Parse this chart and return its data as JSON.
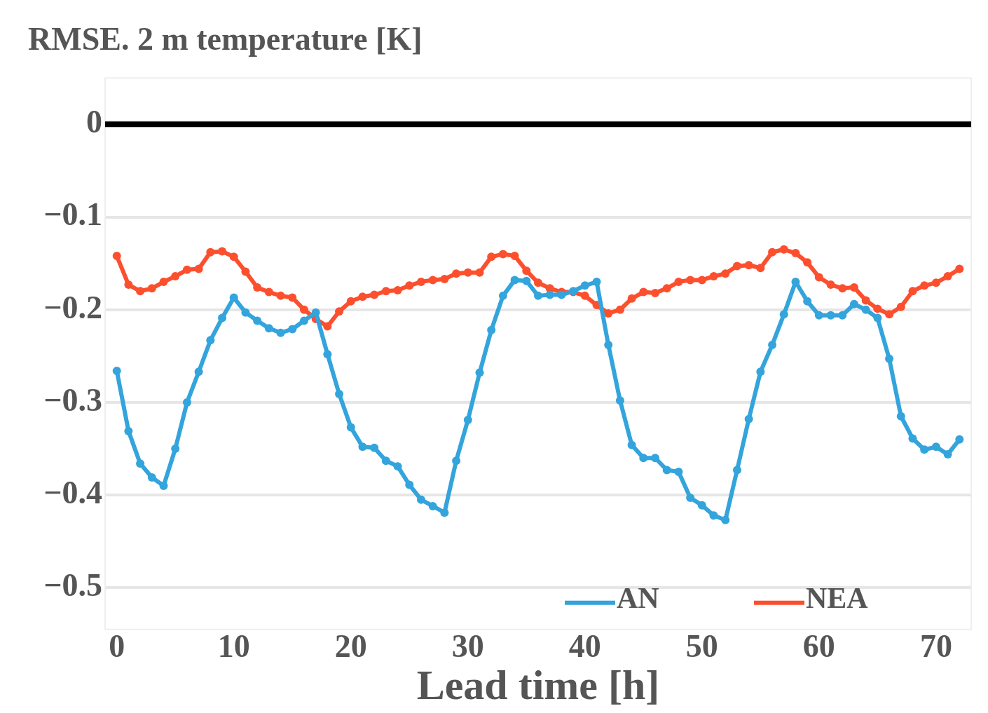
{
  "chart_data": {
    "type": "line",
    "title": "RMSE. 2 m temperature [K]",
    "xlabel": "Lead time [h]",
    "x": [
      0,
      1,
      2,
      3,
      4,
      5,
      6,
      7,
      8,
      9,
      10,
      11,
      12,
      13,
      14,
      15,
      16,
      17,
      18,
      19,
      20,
      21,
      22,
      23,
      24,
      25,
      26,
      27,
      28,
      29,
      30,
      31,
      32,
      33,
      34,
      35,
      36,
      37,
      38,
      39,
      40,
      41,
      42,
      43,
      44,
      45,
      46,
      47,
      48,
      49,
      50,
      51,
      52,
      53,
      54,
      55,
      56,
      57,
      58,
      59,
      60,
      61,
      62,
      63,
      64,
      65,
      66,
      67,
      68,
      69,
      70,
      71,
      72
    ],
    "series": [
      {
        "name": "AN",
        "color": "#33a4dc",
        "values": [
          -0.266,
          -0.331,
          -0.366,
          -0.381,
          -0.39,
          -0.35,
          -0.3,
          -0.267,
          -0.233,
          -0.209,
          -0.187,
          -0.203,
          -0.212,
          -0.22,
          -0.225,
          -0.221,
          -0.212,
          -0.203,
          -0.248,
          -0.291,
          -0.327,
          -0.348,
          -0.349,
          -0.363,
          -0.369,
          -0.389,
          -0.405,
          -0.412,
          -0.419,
          -0.363,
          -0.319,
          -0.268,
          -0.222,
          -0.185,
          -0.168,
          -0.169,
          -0.185,
          -0.184,
          -0.184,
          -0.18,
          -0.174,
          -0.17,
          -0.238,
          -0.298,
          -0.346,
          -0.36,
          -0.36,
          -0.373,
          -0.375,
          -0.403,
          -0.411,
          -0.422,
          -0.427,
          -0.373,
          -0.318,
          -0.267,
          -0.238,
          -0.205,
          -0.17,
          -0.191,
          -0.206,
          -0.206,
          -0.206,
          -0.194,
          -0.2,
          -0.209,
          -0.253,
          -0.315,
          -0.339,
          -0.351,
          -0.348,
          -0.356,
          -0.34
        ]
      },
      {
        "name": "NEA",
        "color": "#fc4f2e",
        "values": [
          -0.142,
          -0.173,
          -0.18,
          -0.177,
          -0.17,
          -0.164,
          -0.157,
          -0.156,
          -0.138,
          -0.137,
          -0.143,
          -0.159,
          -0.176,
          -0.181,
          -0.185,
          -0.187,
          -0.2,
          -0.21,
          -0.218,
          -0.202,
          -0.191,
          -0.186,
          -0.184,
          -0.18,
          -0.179,
          -0.174,
          -0.17,
          -0.168,
          -0.167,
          -0.161,
          -0.16,
          -0.16,
          -0.143,
          -0.14,
          -0.142,
          -0.158,
          -0.171,
          -0.177,
          -0.181,
          -0.181,
          -0.185,
          -0.195,
          -0.204,
          -0.2,
          -0.188,
          -0.181,
          -0.182,
          -0.177,
          -0.17,
          -0.168,
          -0.168,
          -0.164,
          -0.161,
          -0.153,
          -0.152,
          -0.155,
          -0.138,
          -0.135,
          -0.139,
          -0.149,
          -0.165,
          -0.173,
          -0.177,
          -0.176,
          -0.19,
          -0.199,
          -0.205,
          -0.197,
          -0.18,
          -0.174,
          -0.171,
          -0.164,
          -0.156
        ]
      }
    ],
    "xlim": [
      -1,
      73
    ],
    "xticks": [
      0,
      10,
      20,
      30,
      40,
      50,
      60,
      70
    ],
    "ylim": [
      -0.545,
      0.05
    ],
    "yticks": [
      0,
      {
        "value": -0.1,
        "label": "−0.1"
      },
      {
        "value": -0.2,
        "label": "−0.2"
      },
      {
        "value": -0.3,
        "label": "−0.3"
      },
      {
        "value": -0.4,
        "label": "−0.4"
      },
      {
        "value": -0.5,
        "label": "−0.5"
      }
    ],
    "ref_lines": [
      {
        "axis": "y",
        "value": 0,
        "color": "#000000"
      }
    ],
    "grid": "y",
    "legend": "bottom right",
    "marker": "circle",
    "line_style": "solid"
  }
}
